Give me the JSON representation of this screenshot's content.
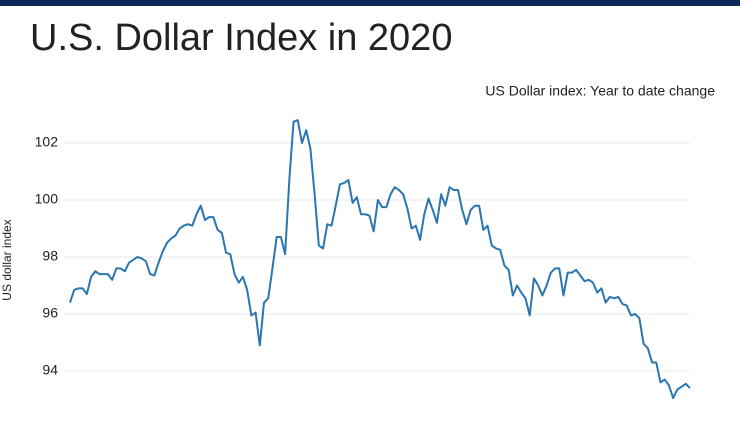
{
  "chart_data": {
    "type": "line",
    "title": "U.S. Dollar Index in 2020",
    "subtitle": "US Dollar index: Year to date change",
    "y_label": "US dollar index",
    "color": "#2a76b0",
    "ylim": [
      93,
      103
    ],
    "yticks": [
      94,
      96,
      98,
      100,
      102
    ],
    "grid": true,
    "values": [
      96.4,
      96.85,
      96.9,
      96.9,
      96.7,
      97.3,
      97.5,
      97.4,
      97.4,
      97.4,
      97.2,
      97.6,
      97.6,
      97.5,
      97.8,
      97.9,
      98.0,
      97.95,
      97.85,
      97.4,
      97.35,
      97.8,
      98.2,
      98.5,
      98.65,
      98.75,
      99.0,
      99.1,
      99.15,
      99.1,
      99.5,
      99.8,
      99.3,
      99.4,
      99.4,
      98.95,
      98.85,
      98.15,
      98.1,
      97.4,
      97.1,
      97.3,
      96.85,
      95.95,
      96.05,
      94.9,
      96.4,
      96.55,
      97.6,
      98.7,
      98.7,
      98.1,
      100.7,
      102.75,
      102.8,
      102.0,
      102.45,
      101.8,
      100.2,
      98.4,
      98.3,
      99.15,
      99.1,
      99.8,
      100.55,
      100.6,
      100.7,
      99.9,
      100.1,
      99.5,
      99.5,
      99.45,
      98.9,
      100.0,
      99.75,
      99.75,
      100.2,
      100.45,
      100.35,
      100.2,
      99.7,
      99.0,
      99.1,
      98.6,
      99.5,
      100.05,
      99.65,
      99.2,
      100.2,
      99.8,
      100.45,
      100.35,
      100.35,
      99.65,
      99.15,
      99.65,
      99.8,
      99.8,
      98.95,
      99.1,
      98.4,
      98.3,
      98.25,
      97.7,
      97.55,
      96.65,
      97.0,
      96.75,
      96.55,
      95.95,
      97.25,
      97.0,
      96.65,
      97.0,
      97.45,
      97.6,
      97.6,
      96.65,
      97.45,
      97.45,
      97.55,
      97.35,
      97.15,
      97.2,
      97.1,
      96.75,
      96.9,
      96.4,
      96.6,
      96.55,
      96.6,
      96.35,
      96.3,
      95.95,
      96.0,
      95.85,
      94.95,
      94.8,
      94.3,
      94.3,
      93.6,
      93.7,
      93.5,
      93.05,
      93.35,
      93.45,
      93.55,
      93.4
    ]
  }
}
